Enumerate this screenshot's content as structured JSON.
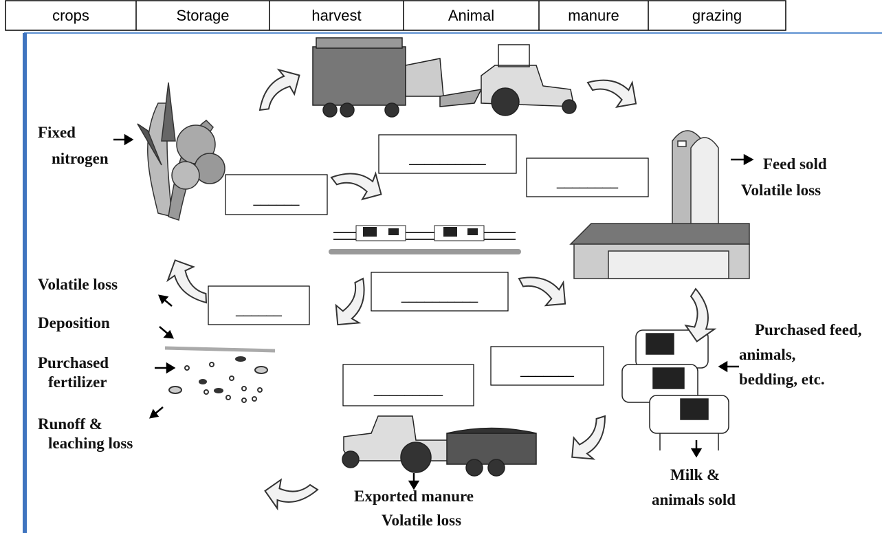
{
  "word_bank": [
    "crops",
    "Storage",
    "harvest",
    "Animal",
    "manure",
    "grazing"
  ],
  "labels": {
    "fixed_nitrogen": [
      "Fixed",
      "nitrogen"
    ],
    "feed_sold": [
      "Feed sold",
      "Volatile loss"
    ],
    "volatile_loss": [
      "Volatile loss"
    ],
    "deposition": [
      "Deposition"
    ],
    "purchased_fertilizer": [
      "Purchased",
      "fertilizer"
    ],
    "runoff": [
      "Runoff &",
      "leaching loss"
    ],
    "purchased_feed": [
      "Purchased feed,",
      "animals,",
      "bedding, etc."
    ],
    "milk": [
      "Milk &",
      "animals sold"
    ],
    "exported_manure": [
      "Exported manure",
      "Volatile loss"
    ]
  },
  "blanks": [
    "__________",
    "________",
    "______",
    "__________",
    "______",
    "_______",
    "_________"
  ]
}
